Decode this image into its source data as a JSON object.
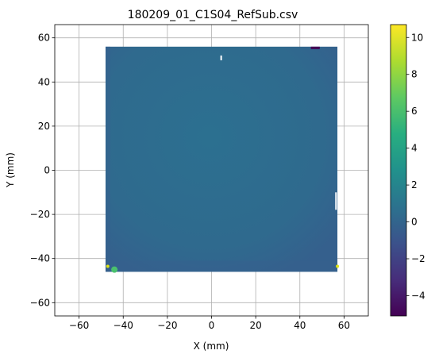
{
  "chart_data": {
    "type": "heatmap",
    "title": "180209_01_C1S04_RefSub.csv",
    "xlabel": "X (mm)",
    "ylabel": "Y (mm)",
    "xlim": [
      -71,
      71
    ],
    "ylim": [
      -66,
      66
    ],
    "xticks": [
      -60,
      -40,
      -20,
      0,
      20,
      40,
      60
    ],
    "yticks": [
      -60,
      -40,
      -20,
      0,
      20,
      40,
      60
    ],
    "grid": true,
    "sample_extent": {
      "x": [
        -48,
        57
      ],
      "y": [
        -46,
        56
      ]
    },
    "surface_typical_value": -0.5,
    "colorbar": {
      "colormap": "viridis",
      "min": -5.1,
      "max": 10.7,
      "ticks": [
        -4,
        -2,
        0,
        2,
        4,
        6,
        8,
        10
      ]
    },
    "colors": {
      "surface_main": "#2e6a8e",
      "surface_edge": "#355f8d",
      "hotspot_green": "#4ac16d",
      "hotspot_yellow": "#dde318",
      "low_spot": "#440154",
      "grid": "#b0b0b0"
    }
  }
}
